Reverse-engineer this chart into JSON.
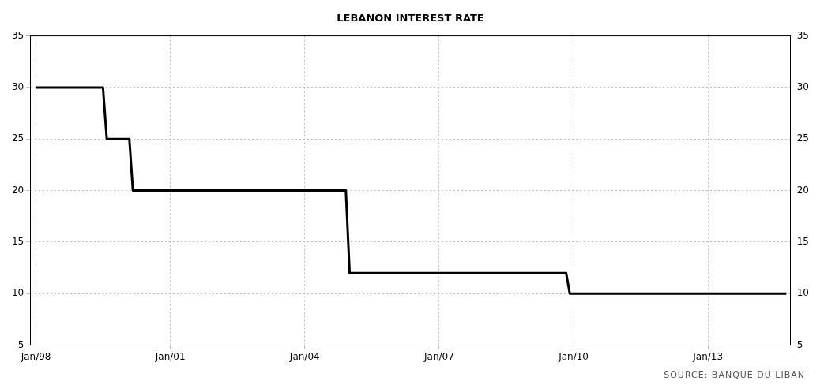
{
  "chart_data": {
    "type": "line",
    "title": "LEBANON INTEREST RATE",
    "x": [
      "1998-01",
      "1999-07",
      "1999-08",
      "2000-02",
      "2000-03",
      "2004-12",
      "2005-01",
      "2009-11",
      "2009-12",
      "2014-10"
    ],
    "series": [
      {
        "color": "#000000",
        "values": [
          30,
          30,
          25,
          25,
          20,
          20,
          12,
          12,
          10,
          10
        ]
      }
    ],
    "xlim": [
      "1997-11-15",
      "2014-11-05"
    ],
    "xticks": [
      {
        "value": "1998-01",
        "label": "Jan/98"
      },
      {
        "value": "2001-01",
        "label": "Jan/01"
      },
      {
        "value": "2004-01",
        "label": "Jan/04"
      },
      {
        "value": "2007-01",
        "label": "Jan/07"
      },
      {
        "value": "2010-01",
        "label": "Jan/10"
      },
      {
        "value": "2013-01",
        "label": "Jan/13"
      }
    ],
    "ylim": [
      5,
      35
    ],
    "yticks": [
      5,
      10,
      15,
      20,
      25,
      30,
      35
    ],
    "y2lim": [
      5,
      35
    ],
    "y2ticks": [
      5,
      10,
      15,
      20,
      25,
      30,
      35
    ],
    "grid": true,
    "legend": false,
    "marker": "none",
    "line_style": "solid",
    "annotations": [
      "SOURCE: BANQUE DU LIBAN"
    ]
  }
}
